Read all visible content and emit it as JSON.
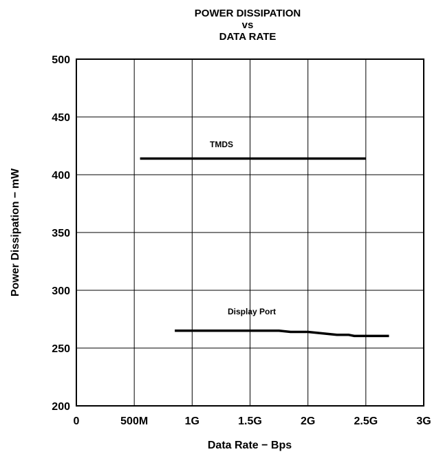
{
  "chart_data": {
    "type": "line",
    "title_lines": [
      "POWER DISSIPATION",
      "vs",
      "DATA RATE"
    ],
    "xlabel": "Data Rate − Bps",
    "ylabel": "Power Dissipation − mW",
    "xlim": [
      0,
      3000000000
    ],
    "ylim": [
      200,
      500
    ],
    "x_ticks": [
      {
        "value": 0,
        "label": "0"
      },
      {
        "value": 500000000,
        "label": "500M"
      },
      {
        "value": 1000000000,
        "label": "1G"
      },
      {
        "value": 1500000000,
        "label": "1.5G"
      },
      {
        "value": 2000000000,
        "label": "2G"
      },
      {
        "value": 2500000000,
        "label": "2.5G"
      },
      {
        "value": 3000000000,
        "label": "3G"
      }
    ],
    "y_ticks": [
      {
        "value": 200,
        "label": "200"
      },
      {
        "value": 250,
        "label": "250"
      },
      {
        "value": 300,
        "label": "300"
      },
      {
        "value": 350,
        "label": "350"
      },
      {
        "value": 400,
        "label": "400"
      },
      {
        "value": 450,
        "label": "450"
      },
      {
        "value": 500,
        "label": "500"
      }
    ],
    "grid": true,
    "series": [
      {
        "name": "TMDS",
        "x": [
          550000000,
          1000000000,
          1500000000,
          2000000000,
          2500000000
        ],
        "y": [
          414,
          414,
          414,
          414,
          414
        ]
      },
      {
        "name": "Display Port",
        "x": [
          850000000,
          1000000000,
          1250000000,
          1500000000,
          1750000000,
          1850000000,
          2000000000,
          2250000000,
          2350000000,
          2400000000,
          2500000000,
          2700000000
        ],
        "y": [
          265,
          265,
          265,
          265,
          265,
          264,
          264,
          261.5,
          261.5,
          260.5,
          260.5,
          260.5
        ]
      }
    ]
  }
}
